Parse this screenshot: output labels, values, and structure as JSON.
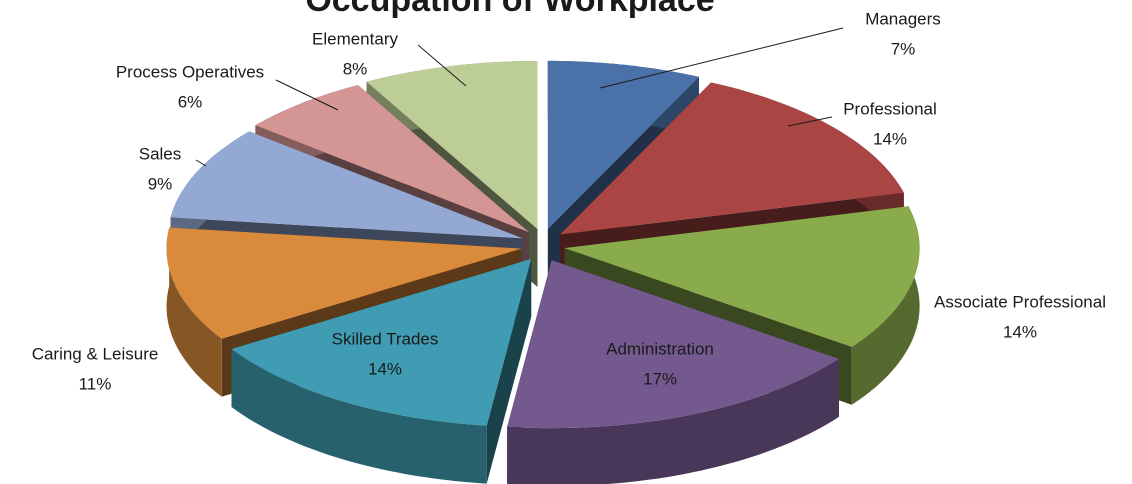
{
  "chart_data": {
    "type": "pie",
    "title": "Occupation of Workplace",
    "categories": [
      "Managers",
      "Professional",
      "Associate Professional",
      "Administration",
      "Skilled Trades",
      "Caring & Leisure",
      "Sales",
      "Process Operatives",
      "Elementary"
    ],
    "values": [
      7,
      14,
      14,
      17,
      14,
      11,
      9,
      6,
      8
    ],
    "value_labels": [
      "7%",
      "14%",
      "14%",
      "17%",
      "14%",
      "11%",
      "9%",
      "6%",
      "8%"
    ],
    "colors": [
      "#4a72a8",
      "#a94543",
      "#8aab4c",
      "#74598f",
      "#3f9cb2",
      "#da8a3b",
      "#93a9d3",
      "#d49695",
      "#bccd96"
    ]
  }
}
